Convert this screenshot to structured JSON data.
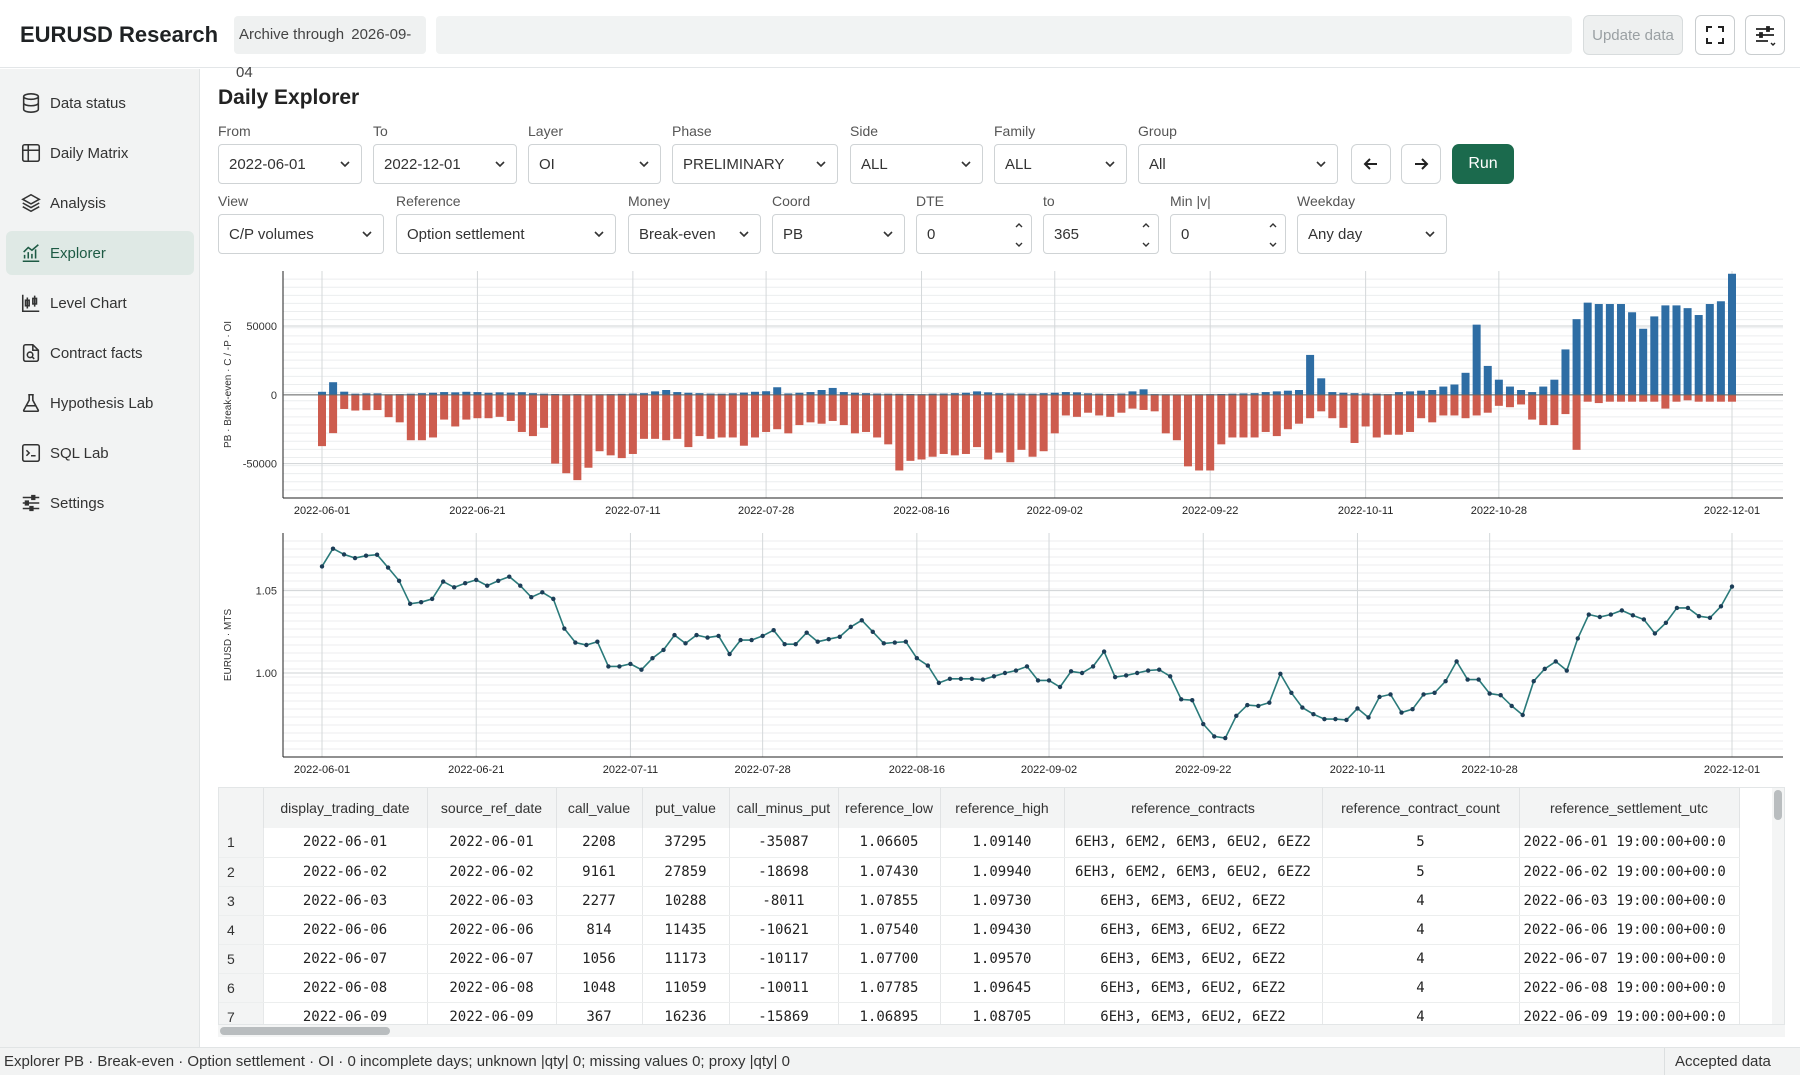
{
  "header": {
    "app_title": "EURUSD Research",
    "archive_label": "Archive through",
    "archive_date": "2026-09-04",
    "update_label": "Update data",
    "fullscreen_icon": "fullscreen-icon",
    "settings_icon": "sliders-menu-icon"
  },
  "sidebar": {
    "items": [
      {
        "label": "Data status",
        "icon": "database-icon"
      },
      {
        "label": "Daily Matrix",
        "icon": "table-icon"
      },
      {
        "label": "Analysis",
        "icon": "layers-icon"
      },
      {
        "label": "Explorer",
        "icon": "chart-line-icon",
        "active": true
      },
      {
        "label": "Level Chart",
        "icon": "candlestick-icon"
      },
      {
        "label": "Contract facts",
        "icon": "document-search-icon"
      },
      {
        "label": "Hypothesis Lab",
        "icon": "flask-icon"
      },
      {
        "label": "SQL Lab",
        "icon": "terminal-icon"
      },
      {
        "label": "Settings",
        "icon": "sliders-icon"
      }
    ]
  },
  "page": {
    "title": "Daily Explorer"
  },
  "filters": {
    "from": {
      "label": "From",
      "value": "2022-06-01"
    },
    "to": {
      "label": "To",
      "value": "2022-12-01"
    },
    "layer": {
      "label": "Layer",
      "value": "OI"
    },
    "phase": {
      "label": "Phase",
      "value": "PRELIMINARY"
    },
    "side": {
      "label": "Side",
      "value": "ALL"
    },
    "family": {
      "label": "Family",
      "value": "ALL"
    },
    "group": {
      "label": "Group",
      "value": "All"
    },
    "run_label": "Run",
    "view": {
      "label": "View",
      "value": "C/P volumes"
    },
    "reference": {
      "label": "Reference",
      "value": "Option settlement"
    },
    "money": {
      "label": "Money",
      "value": "Break-even"
    },
    "coord": {
      "label": "Coord",
      "value": "PB"
    },
    "dte": {
      "label": "DTE",
      "value": "0"
    },
    "dte_to": {
      "label": "to",
      "value": "365"
    },
    "min_v": {
      "label": "Min |v|",
      "value": "0"
    },
    "weekday": {
      "label": "Weekday",
      "value": "Any day"
    }
  },
  "colors": {
    "call": "#2e6da4",
    "put": "#cd5c4e",
    "line": "#2a7a7a",
    "accent": "#1b6a4d"
  },
  "chart_data": [
    {
      "type": "bar",
      "ylabel": "PB · Break-even · C / -P · OI",
      "ylim": [
        -75000,
        90000
      ],
      "yticks": [
        50000,
        0,
        -50000
      ],
      "x_ticks": [
        "2022-06-01",
        "2022-06-21",
        "2022-07-11",
        "2022-07-28",
        "2022-08-16",
        "2022-09-02",
        "2022-09-22",
        "2022-10-11",
        "2022-10-28",
        "2022-12-01"
      ],
      "grid": true,
      "series": [
        {
          "name": "call",
          "values": [
            2208,
            9161,
            2277,
            814,
            1056,
            1048,
            367,
            500,
            800,
            1200,
            1500,
            2000,
            1800,
            2200,
            2000,
            1500,
            1800,
            1600,
            1900,
            1200,
            800,
            600,
            400,
            500,
            300,
            400,
            500,
            700,
            900,
            1200,
            2500,
            3500,
            2000,
            1500,
            1200,
            900,
            800,
            1100,
            1600,
            2200,
            2600,
            5500,
            1000,
            1500,
            2000,
            3500,
            5000,
            2000,
            1500,
            1200,
            900,
            800,
            700,
            600,
            500,
            800,
            900,
            1200,
            1500,
            2500,
            1800,
            1200,
            1000,
            900,
            800,
            1200,
            1500,
            2000,
            1800,
            1100,
            800,
            600,
            900,
            2500,
            4000,
            500,
            400,
            300,
            200,
            400,
            500,
            600,
            800,
            1000,
            1200,
            2000,
            2500,
            3000,
            3500,
            29000,
            12000,
            2000,
            1500,
            1200,
            1000,
            800,
            500,
            2000,
            2500,
            3000,
            3500,
            6000,
            7500,
            16000,
            51000,
            21000,
            11000,
            6000,
            3500,
            2000,
            6000,
            11000,
            33000,
            55000,
            67000,
            66000,
            66000,
            66000,
            60000,
            48000,
            57000,
            65000,
            65000,
            63000,
            58000,
            66000,
            68000,
            88000
          ]
        },
        {
          "name": "put",
          "values": [
            37295,
            27859,
            10288,
            11435,
            11173,
            11059,
            16236,
            20000,
            33000,
            33000,
            31000,
            18000,
            23000,
            18000,
            17000,
            17000,
            16000,
            19000,
            27000,
            30000,
            24000,
            50000,
            57000,
            62000,
            53000,
            41000,
            44000,
            46000,
            43000,
            32000,
            32000,
            33000,
            32000,
            38000,
            30000,
            32000,
            31000,
            31000,
            37000,
            31000,
            27000,
            25000,
            28000,
            22000,
            20000,
            21000,
            19000,
            22000,
            28000,
            27000,
            31000,
            36000,
            55000,
            48000,
            47000,
            45000,
            43000,
            44000,
            43000,
            38000,
            47000,
            42000,
            49000,
            40000,
            45000,
            41000,
            28000,
            15000,
            16000,
            13000,
            15000,
            16000,
            13000,
            10000,
            11000,
            12000,
            28000,
            33000,
            52000,
            55000,
            55000,
            36000,
            31000,
            31000,
            31000,
            27000,
            30000,
            25000,
            21000,
            17000,
            12000,
            17000,
            24000,
            35000,
            23000,
            31000,
            29000,
            29000,
            27000,
            17000,
            20000,
            15000,
            15000,
            17000,
            15000,
            13000,
            8000,
            9000,
            7000,
            18000,
            22000,
            22000,
            14000,
            40000,
            5000,
            6000,
            5000,
            5000,
            5000,
            5000,
            5000,
            10000,
            5000,
            4000,
            5000,
            5000,
            5000,
            5000,
            4000,
            3000
          ]
        }
      ]
    },
    {
      "type": "line",
      "ylabel": "EURUSD · MTS",
      "ylim": [
        0.949,
        1.085
      ],
      "yticks": [
        1.05,
        1.0
      ],
      "x_ticks": [
        "2022-06-01",
        "2022-06-21",
        "2022-07-11",
        "2022-07-28",
        "2022-08-16",
        "2022-09-02",
        "2022-09-22",
        "2022-10-11",
        "2022-10-28",
        "2022-12-01"
      ],
      "grid": true,
      "series": [
        {
          "name": "EURUSD",
          "values": [
            1.0647,
            1.0755,
            1.072,
            1.0698,
            1.0712,
            1.0718,
            1.064,
            1.056,
            1.042,
            1.043,
            1.045,
            1.0555,
            1.052,
            1.0545,
            1.0565,
            1.053,
            1.056,
            1.0585,
            1.053,
            1.046,
            1.049,
            1.045,
            1.027,
            1.0185,
            1.017,
            1.019,
            1.004,
            1.004,
            1.0055,
            1.002,
            1.009,
            1.014,
            1.023,
            1.018,
            1.023,
            1.0215,
            1.0225,
            1.0115,
            1.02,
            1.02,
            1.0225,
            1.026,
            1.0175,
            1.0175,
            1.0245,
            1.019,
            1.0205,
            1.022,
            1.028,
            1.032,
            1.025,
            1.018,
            1.0185,
            1.019,
            1.009,
            1.0045,
            0.994,
            0.9965,
            0.9965,
            0.9965,
            0.996,
            0.998,
            1.0,
            1.0015,
            1.004,
            0.9955,
            0.9955,
            0.9915,
            1.001,
            1.0,
            1.004,
            1.013,
            0.9975,
            0.9985,
            1.0,
            1.0015,
            1.002,
            0.998,
            0.984,
            0.9835,
            0.969,
            0.9615,
            0.9605,
            0.974,
            0.9805,
            0.98,
            0.982,
            0.9995,
            0.988,
            0.979,
            0.975,
            0.972,
            0.972,
            0.9715,
            0.9785,
            0.973,
            0.9855,
            0.987,
            0.976,
            0.978,
            0.987,
            0.988,
            0.995,
            1.007,
            0.996,
            0.996,
            0.9875,
            0.9865,
            0.98,
            0.9745,
            0.995,
            1.0025,
            1.007,
            1.0015,
            1.021,
            1.0355,
            1.034,
            1.0355,
            1.038,
            1.035,
            1.0325,
            1.024,
            1.0305,
            1.0395,
            1.0395,
            1.0345,
            1.0335,
            1.0405,
            1.0525
          ]
        }
      ]
    }
  ],
  "table": {
    "columns": [
      "display_trading_date",
      "source_ref_date",
      "call_value",
      "put_value",
      "call_minus_put",
      "reference_low",
      "reference_high",
      "reference_contracts",
      "reference_contract_count",
      "reference_settlement_utc"
    ],
    "rows": [
      {
        "n": "1",
        "cells": [
          "2022-06-01",
          "2022-06-01",
          "2208",
          "37295",
          "-35087",
          "1.06605",
          "1.09140",
          "6EH3, 6EM2, 6EM3, 6EU2, 6EZ2",
          "5",
          "2022-06-01 19:00:00+00:0"
        ]
      },
      {
        "n": "2",
        "cells": [
          "2022-06-02",
          "2022-06-02",
          "9161",
          "27859",
          "-18698",
          "1.07430",
          "1.09940",
          "6EH3, 6EM2, 6EM3, 6EU2, 6EZ2",
          "5",
          "2022-06-02 19:00:00+00:0"
        ]
      },
      {
        "n": "3",
        "cells": [
          "2022-06-03",
          "2022-06-03",
          "2277",
          "10288",
          "-8011",
          "1.07855",
          "1.09730",
          "6EH3, 6EM3, 6EU2, 6EZ2",
          "4",
          "2022-06-03 19:00:00+00:0"
        ]
      },
      {
        "n": "4",
        "cells": [
          "2022-06-06",
          "2022-06-06",
          "814",
          "11435",
          "-10621",
          "1.07540",
          "1.09430",
          "6EH3, 6EM3, 6EU2, 6EZ2",
          "4",
          "2022-06-06 19:00:00+00:0"
        ]
      },
      {
        "n": "5",
        "cells": [
          "2022-06-07",
          "2022-06-07",
          "1056",
          "11173",
          "-10117",
          "1.07700",
          "1.09570",
          "6EH3, 6EM3, 6EU2, 6EZ2",
          "4",
          "2022-06-07 19:00:00+00:0"
        ]
      },
      {
        "n": "6",
        "cells": [
          "2022-06-08",
          "2022-06-08",
          "1048",
          "11059",
          "-10011",
          "1.07785",
          "1.09645",
          "6EH3, 6EM3, 6EU2, 6EZ2",
          "4",
          "2022-06-08 19:00:00+00:0"
        ]
      },
      {
        "n": "7",
        "cells": [
          "2022-06-09",
          "2022-06-09",
          "367",
          "16236",
          "-15869",
          "1.06895",
          "1.08705",
          "6EH3, 6EM3, 6EU2, 6EZ2",
          "4",
          "2022-06-09 19:00:00+00:0"
        ]
      }
    ]
  },
  "status": {
    "left": "Explorer PB · Break-even · Option settlement · OI · 0 incomplete days; unknown |qty| 0; missing values 0; proxy |qty| 0",
    "right": "Accepted data"
  }
}
